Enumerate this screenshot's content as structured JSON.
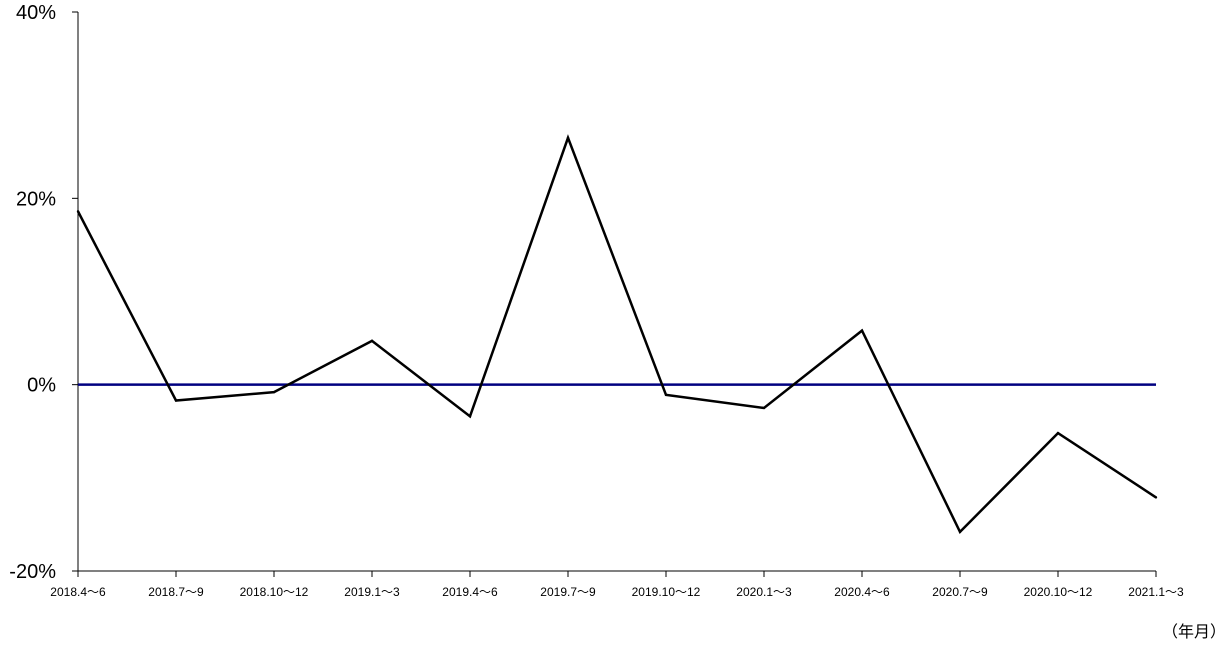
{
  "chart_data": {
    "type": "line",
    "title": "",
    "xlabel": "",
    "ylabel": "",
    "x_unit_label": "（年月）",
    "categories": [
      "2018.4～6",
      "2018.7～9",
      "2018.10～12",
      "2019.1～3",
      "2019.4～6",
      "2019.7～9",
      "2019.10～12",
      "2020.1～3",
      "2020.4～6",
      "2020.7～9",
      "2020.10～12",
      "2021.1～3"
    ],
    "series": [
      {
        "values": [
          18.6,
          -1.7,
          -0.8,
          4.7,
          -3.4,
          26.5,
          -1.1,
          -2.5,
          5.8,
          -15.8,
          -5.2,
          -12.1
        ],
        "color": "#000000"
      }
    ],
    "reference_line": {
      "value": 0,
      "color": "#000080"
    },
    "ylim": [
      -20,
      40
    ],
    "yticks": [
      -20,
      0,
      20,
      40
    ],
    "ytick_labels": [
      "-20%",
      "0%",
      "20%",
      "40%"
    ],
    "grid": false,
    "legend": "none"
  }
}
